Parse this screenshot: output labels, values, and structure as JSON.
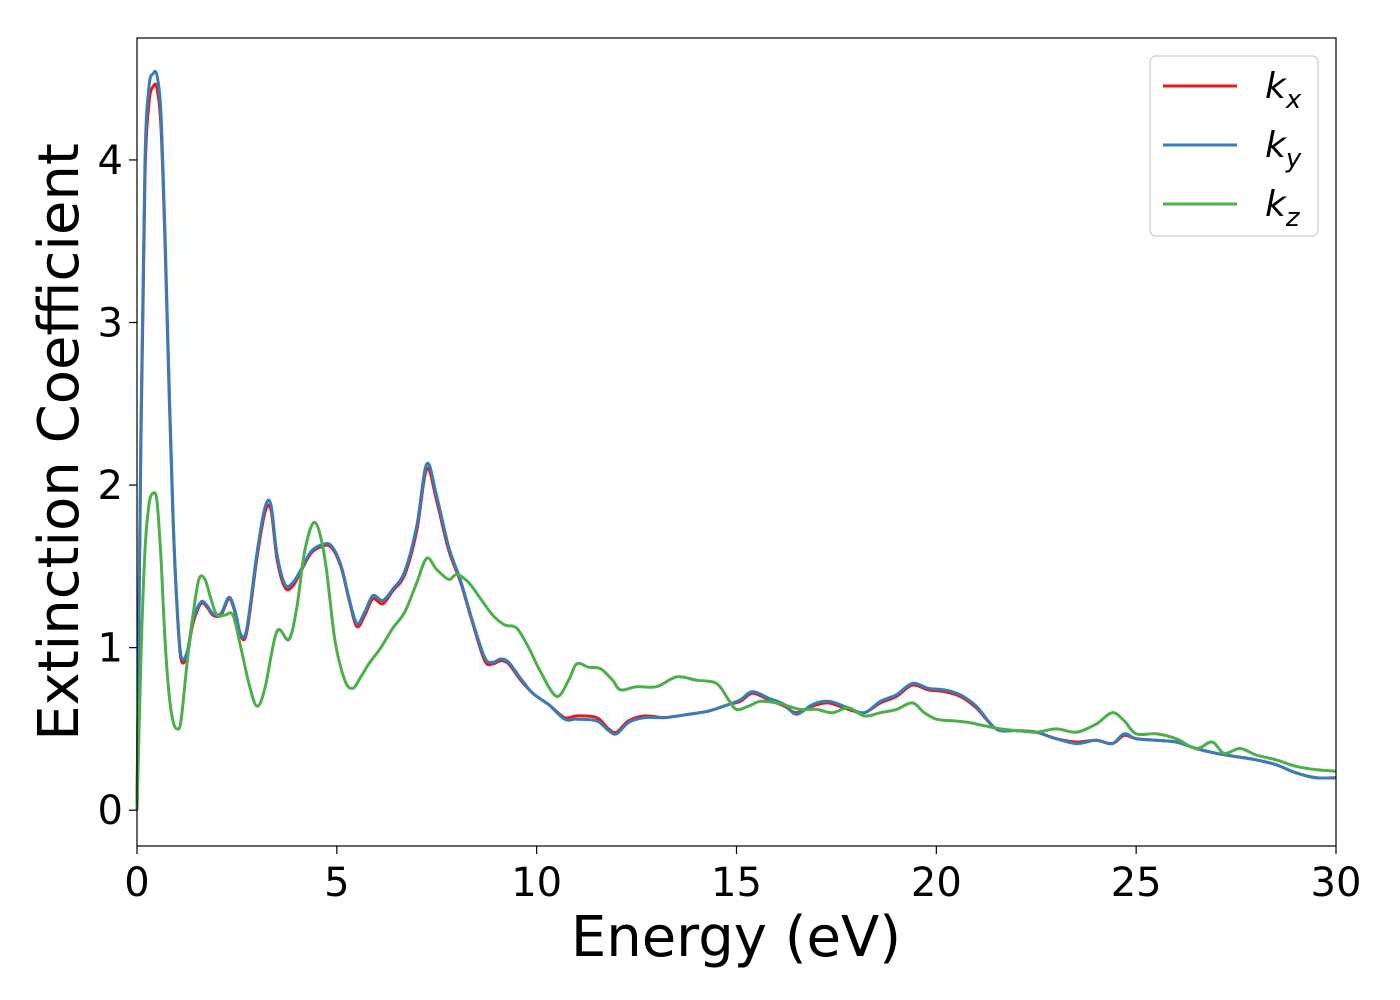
{
  "chart_data": {
    "type": "line",
    "title": "",
    "xlabel": "Energy (eV)",
    "ylabel": "Extinction Coefficient",
    "xlim": [
      0,
      30
    ],
    "ylim": [
      -0.22,
      4.75
    ],
    "xticks": [
      0,
      5,
      10,
      15,
      20,
      25,
      30
    ],
    "yticks": [
      0,
      1,
      2,
      3,
      4
    ],
    "grid": false,
    "legend_position": "top-right",
    "series": [
      {
        "name": "k",
        "subscript": "x",
        "color": "#e41a1c",
        "x": [
          0,
          0.1,
          0.2,
          0.3,
          0.4,
          0.5,
          0.6,
          0.7,
          0.8,
          0.9,
          1.0,
          1.1,
          1.25,
          1.4,
          1.6,
          1.75,
          1.9,
          2.1,
          2.3,
          2.45,
          2.6,
          2.75,
          3.0,
          3.2,
          3.35,
          3.5,
          3.7,
          3.9,
          4.1,
          4.35,
          4.6,
          4.85,
          5.1,
          5.3,
          5.5,
          5.7,
          5.9,
          6.15,
          6.4,
          6.7,
          7.0,
          7.25,
          7.5,
          7.8,
          8.1,
          8.4,
          8.7,
          8.9,
          9.1,
          9.3,
          9.6,
          9.9,
          10.3,
          10.7,
          11.0,
          11.5,
          11.8,
          12.0,
          12.3,
          12.7,
          13.2,
          13.8,
          14.3,
          14.8,
          15.1,
          15.4,
          15.8,
          16.2,
          16.5,
          16.9,
          17.3,
          17.8,
          18.2,
          18.6,
          19.0,
          19.4,
          19.8,
          20.2,
          20.6,
          21.0,
          21.5,
          22.0,
          22.5,
          23.0,
          23.5,
          24.0,
          24.4,
          24.7,
          25.0,
          25.5,
          26.0,
          26.5,
          27.0,
          27.5,
          28.0,
          28.5,
          29.0,
          29.5,
          30.0
        ],
        "y": [
          0.0,
          2.3,
          3.9,
          4.35,
          4.45,
          4.44,
          4.2,
          3.5,
          2.6,
          1.8,
          1.25,
          0.93,
          0.95,
          1.15,
          1.27,
          1.25,
          1.2,
          1.2,
          1.3,
          1.22,
          1.07,
          1.1,
          1.55,
          1.83,
          1.85,
          1.55,
          1.37,
          1.38,
          1.47,
          1.58,
          1.62,
          1.62,
          1.5,
          1.3,
          1.13,
          1.2,
          1.3,
          1.27,
          1.35,
          1.45,
          1.72,
          2.1,
          1.9,
          1.6,
          1.4,
          1.15,
          0.92,
          0.9,
          0.92,
          0.9,
          0.8,
          0.72,
          0.65,
          0.57,
          0.58,
          0.57,
          0.5,
          0.48,
          0.55,
          0.58,
          0.57,
          0.59,
          0.61,
          0.65,
          0.67,
          0.72,
          0.68,
          0.64,
          0.6,
          0.64,
          0.66,
          0.62,
          0.6,
          0.66,
          0.7,
          0.77,
          0.74,
          0.73,
          0.7,
          0.63,
          0.5,
          0.49,
          0.48,
          0.44,
          0.42,
          0.43,
          0.41,
          0.46,
          0.44,
          0.43,
          0.42,
          0.38,
          0.35,
          0.33,
          0.31,
          0.28,
          0.23,
          0.2,
          0.2
        ]
      },
      {
        "name": "k",
        "subscript": "y",
        "color": "#377eb8",
        "x": [
          0,
          0.1,
          0.2,
          0.3,
          0.4,
          0.5,
          0.6,
          0.7,
          0.8,
          0.9,
          1.0,
          1.1,
          1.25,
          1.4,
          1.6,
          1.75,
          1.9,
          2.1,
          2.3,
          2.45,
          2.6,
          2.75,
          3.0,
          3.2,
          3.35,
          3.5,
          3.7,
          3.9,
          4.1,
          4.35,
          4.6,
          4.85,
          5.1,
          5.3,
          5.5,
          5.7,
          5.9,
          6.15,
          6.4,
          6.7,
          7.0,
          7.25,
          7.5,
          7.8,
          8.1,
          8.4,
          8.7,
          8.9,
          9.1,
          9.3,
          9.6,
          9.9,
          10.3,
          10.7,
          11.0,
          11.5,
          11.8,
          12.0,
          12.3,
          12.7,
          13.2,
          13.8,
          14.3,
          14.8,
          15.1,
          15.4,
          15.8,
          16.2,
          16.5,
          16.9,
          17.3,
          17.8,
          18.2,
          18.6,
          19.0,
          19.4,
          19.8,
          20.2,
          20.6,
          21.0,
          21.5,
          22.0,
          22.5,
          23.0,
          23.5,
          24.0,
          24.4,
          24.7,
          25.0,
          25.5,
          26.0,
          26.5,
          27.0,
          27.5,
          28.0,
          28.5,
          29.0,
          29.5,
          30.0
        ],
        "y": [
          0.0,
          2.4,
          4.0,
          4.45,
          4.53,
          4.52,
          4.28,
          3.55,
          2.65,
          1.82,
          1.27,
          0.95,
          0.97,
          1.17,
          1.28,
          1.26,
          1.21,
          1.21,
          1.31,
          1.23,
          1.08,
          1.12,
          1.58,
          1.86,
          1.88,
          1.58,
          1.39,
          1.4,
          1.48,
          1.59,
          1.63,
          1.63,
          1.51,
          1.31,
          1.15,
          1.22,
          1.32,
          1.29,
          1.36,
          1.47,
          1.75,
          2.13,
          1.93,
          1.62,
          1.41,
          1.16,
          0.94,
          0.91,
          0.93,
          0.91,
          0.81,
          0.72,
          0.65,
          0.56,
          0.56,
          0.55,
          0.49,
          0.47,
          0.54,
          0.57,
          0.57,
          0.59,
          0.61,
          0.65,
          0.68,
          0.73,
          0.69,
          0.65,
          0.59,
          0.65,
          0.67,
          0.63,
          0.6,
          0.67,
          0.71,
          0.78,
          0.75,
          0.74,
          0.71,
          0.64,
          0.5,
          0.49,
          0.48,
          0.44,
          0.41,
          0.43,
          0.41,
          0.47,
          0.44,
          0.43,
          0.42,
          0.38,
          0.35,
          0.33,
          0.31,
          0.28,
          0.23,
          0.2,
          0.2
        ]
      },
      {
        "name": "k",
        "subscript": "z",
        "color": "#4daf4a",
        "x": [
          0,
          0.1,
          0.2,
          0.3,
          0.4,
          0.5,
          0.6,
          0.7,
          0.8,
          0.9,
          1.0,
          1.1,
          1.25,
          1.4,
          1.55,
          1.7,
          1.85,
          2.0,
          2.2,
          2.4,
          2.6,
          2.8,
          3.0,
          3.2,
          3.5,
          3.8,
          4.0,
          4.2,
          4.45,
          4.7,
          4.95,
          5.2,
          5.4,
          5.6,
          5.8,
          6.1,
          6.4,
          6.7,
          7.0,
          7.25,
          7.5,
          7.8,
          8.0,
          8.3,
          8.6,
          8.9,
          9.2,
          9.5,
          9.8,
          10.1,
          10.5,
          10.8,
          11.0,
          11.3,
          11.6,
          11.9,
          12.1,
          12.5,
          13.0,
          13.5,
          14.0,
          14.5,
          14.8,
          15.0,
          15.3,
          15.6,
          16.0,
          16.3,
          16.6,
          17.0,
          17.4,
          17.8,
          18.2,
          18.6,
          19.0,
          19.4,
          19.7,
          20.0,
          20.4,
          20.8,
          21.2,
          21.6,
          22.0,
          22.5,
          23.0,
          23.5,
          24.0,
          24.4,
          24.7,
          25.0,
          25.5,
          26.0,
          26.5,
          26.9,
          27.2,
          27.6,
          28.0,
          28.5,
          29.0,
          29.5,
          30.0
        ],
        "y": [
          0.0,
          0.95,
          1.6,
          1.88,
          1.95,
          1.9,
          1.55,
          1.05,
          0.72,
          0.55,
          0.5,
          0.55,
          0.9,
          1.2,
          1.42,
          1.42,
          1.3,
          1.2,
          1.2,
          1.2,
          1.0,
          0.78,
          0.64,
          0.75,
          1.1,
          1.05,
          1.25,
          1.6,
          1.77,
          1.55,
          1.05,
          0.8,
          0.75,
          0.82,
          0.9,
          1.0,
          1.12,
          1.22,
          1.4,
          1.55,
          1.48,
          1.42,
          1.45,
          1.4,
          1.3,
          1.2,
          1.14,
          1.12,
          1.0,
          0.85,
          0.7,
          0.8,
          0.9,
          0.88,
          0.87,
          0.8,
          0.74,
          0.76,
          0.76,
          0.82,
          0.8,
          0.78,
          0.68,
          0.62,
          0.64,
          0.67,
          0.66,
          0.64,
          0.62,
          0.62,
          0.6,
          0.63,
          0.58,
          0.6,
          0.62,
          0.66,
          0.6,
          0.56,
          0.55,
          0.54,
          0.52,
          0.5,
          0.49,
          0.48,
          0.5,
          0.48,
          0.53,
          0.6,
          0.55,
          0.47,
          0.47,
          0.44,
          0.38,
          0.42,
          0.35,
          0.38,
          0.34,
          0.31,
          0.27,
          0.25,
          0.24
        ]
      }
    ]
  }
}
